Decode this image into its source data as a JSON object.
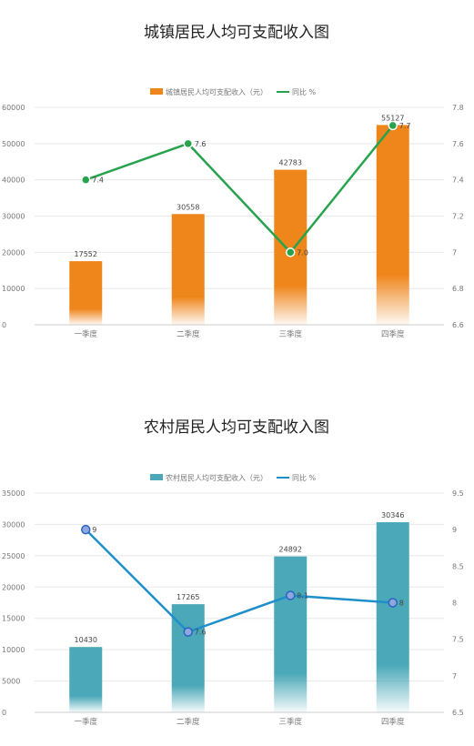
{
  "chart_data": [
    {
      "type": "bar",
      "title": "城镇居民人均可支配收入图",
      "categories": [
        "一季度",
        "二季度",
        "三季度",
        "四季度"
      ],
      "series": [
        {
          "name": "城镇居民人均可支配收入（元）",
          "type": "bar",
          "axis": "left",
          "values": [
            17552,
            30558,
            42783,
            55127
          ],
          "labels": [
            "17552",
            "30558",
            "42783",
            "55127"
          ]
        },
        {
          "name": "同比 %",
          "type": "line",
          "axis": "right",
          "values": [
            7.4,
            7.6,
            7.0,
            7.7
          ],
          "labels": [
            "7.4",
            "7.6",
            "7.0",
            "7.7"
          ]
        }
      ],
      "ylim": [
        0,
        60000
      ],
      "yticks": [
        "0",
        "10000",
        "20000",
        "30000",
        "40000",
        "50000",
        "60000"
      ],
      "y2lim": [
        6.6,
        7.8
      ],
      "y2ticks": [
        "6.6",
        "6.8",
        "7",
        "7.2",
        "7.4",
        "7.6",
        "7.8"
      ],
      "grid": true,
      "legend": "top-center",
      "colors": {
        "bar": "#ef861c",
        "line": "#27a24d",
        "marker_fill": "#27a24d",
        "marker_stroke": "#ffffff"
      }
    },
    {
      "type": "bar",
      "title": "农村居民人均可支配收入图",
      "categories": [
        "一季度",
        "二季度",
        "三季度",
        "四季度"
      ],
      "series": [
        {
          "name": "农村居民人均可支配收入（元）",
          "type": "bar",
          "axis": "left",
          "values": [
            10430,
            17265,
            24892,
            30346
          ],
          "labels": [
            "10430",
            "17265",
            "24892",
            "30346"
          ]
        },
        {
          "name": "同比 %",
          "type": "line",
          "axis": "right",
          "values": [
            9.0,
            7.6,
            8.1,
            8.0
          ],
          "labels": [
            "9",
            "7.6",
            "8.1",
            "8"
          ]
        }
      ],
      "ylim": [
        0,
        35000
      ],
      "yticks": [
        "0",
        "5000",
        "10000",
        "15000",
        "20000",
        "25000",
        "30000",
        "35000"
      ],
      "y2lim": [
        6.5,
        9.5
      ],
      "y2ticks": [
        "6.5",
        "7",
        "7.5",
        "8",
        "8.5",
        "9",
        "9.5"
      ],
      "grid": true,
      "legend": "top-center",
      "colors": {
        "bar": "#4aa8b8",
        "line": "#1f8fca",
        "marker_fill": "#8ea8df",
        "marker_stroke": "#2b63c0"
      }
    }
  ]
}
